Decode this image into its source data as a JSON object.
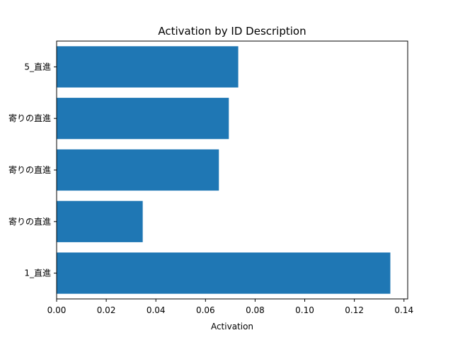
{
  "chart_data": {
    "type": "bar",
    "orientation": "horizontal",
    "title": "Activation by ID Description",
    "xlabel": "Activation",
    "ylabel": "",
    "categories": [
      "1_直進",
      "寄りの直進",
      "寄りの直進",
      "寄りの直進",
      "5_直進"
    ],
    "values": [
      0.1345,
      0.0347,
      0.0654,
      0.0694,
      0.0732
    ],
    "xlim": [
      0,
      0.1415
    ],
    "xticks": [
      "0.00",
      "0.02",
      "0.04",
      "0.06",
      "0.08",
      "0.10",
      "0.12",
      "0.14"
    ],
    "grid": false,
    "legend": null,
    "bar_color": "#1f77b4"
  }
}
